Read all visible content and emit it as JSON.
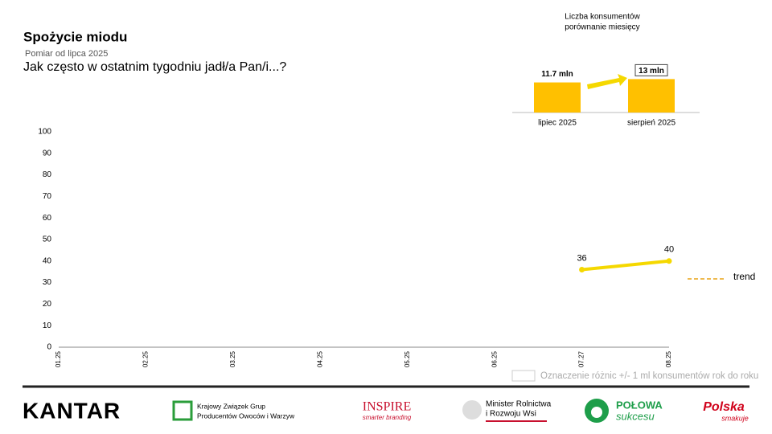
{
  "chart_data": [
    {
      "type": "line",
      "title": "Spożycie miodu",
      "subtitle": "Pomiar od lipca 2025",
      "question": "Jak często w ostatnim tygodniu jadł/a Pan/i...?",
      "categories": [
        "01.25",
        "02.25",
        "03.25",
        "04.25",
        "05.25",
        "06.25",
        "07.27",
        "08.25"
      ],
      "series": [
        {
          "name": null,
          "color": "#f5d800",
          "values": [
            null,
            null,
            null,
            null,
            null,
            null,
            36,
            40
          ]
        },
        {
          "name": "trend",
          "color": "#e8a317",
          "dashed": true,
          "values": [
            null,
            null,
            null,
            null,
            null,
            null,
            null,
            null
          ]
        }
      ],
      "ylim": [
        0,
        100
      ],
      "yticks": [
        0,
        10,
        20,
        30,
        40,
        50,
        60,
        70,
        80,
        90,
        100
      ],
      "grid": false,
      "note": "Oznaczenie różnic +/- 1 ml konsumentów rok do roku"
    },
    {
      "type": "bar",
      "title": "Liczba konsumentów",
      "subtitle": "porównanie miesięcy",
      "categories": [
        "lipiec 2025",
        "sierpień 2025"
      ],
      "values": [
        11.7,
        13
      ],
      "value_labels": [
        "11.7 mln",
        "13 mln"
      ],
      "color": "#ffc000"
    }
  ],
  "footer": {
    "kantar": "KANTAR",
    "kzgpow": [
      "Krajowy Związek Grup",
      "Producentów Owoców i Warzyw"
    ],
    "inspire": "INSPIRE",
    "inspire_sub": "smarter branding",
    "minister": [
      "Minister Rolnictwa",
      "i Rozwoju Wsi"
    ],
    "polowa": "POŁOWA",
    "sukcesu": "sukcesu",
    "polska": "Polska",
    "smakuje": "smakuje"
  }
}
